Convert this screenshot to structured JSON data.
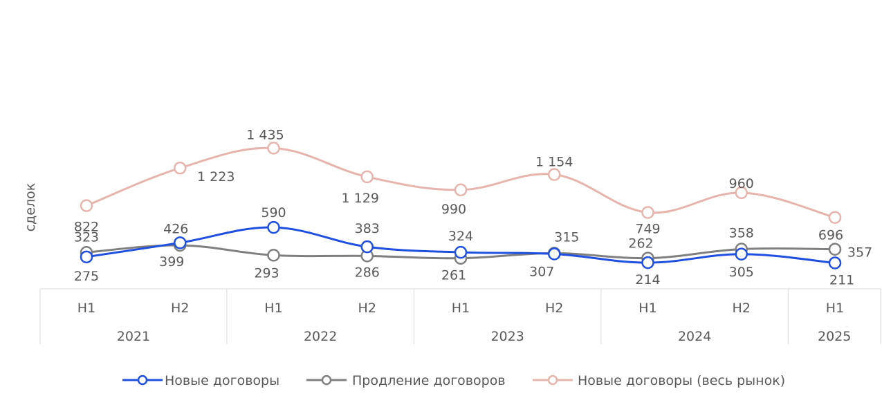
{
  "chart_data": {
    "type": "line",
    "ylabel": "сделок",
    "x_groups": [
      {
        "year": "2021",
        "halves": [
          "H1",
          "H2"
        ]
      },
      {
        "year": "2022",
        "halves": [
          "H1",
          "H2"
        ]
      },
      {
        "year": "2023",
        "halves": [
          "H1",
          "H2"
        ]
      },
      {
        "year": "2024",
        "halves": [
          "H1",
          "H2"
        ]
      },
      {
        "year": "2025",
        "halves": [
          "H1"
        ]
      }
    ],
    "series": [
      {
        "name": "Новые договоры",
        "color": "#1f4fe0",
        "values": [
          275,
          426,
          590,
          383,
          324,
          307,
          214,
          305,
          211
        ],
        "labels": [
          "275",
          "426",
          "590",
          "383",
          "324",
          "307",
          "214",
          "305",
          "211"
        ]
      },
      {
        "name": "Продление договоров",
        "color": "#7f7f7f",
        "values": [
          323,
          399,
          293,
          286,
          261,
          315,
          262,
          358,
          357
        ],
        "labels": [
          "323",
          "399",
          "293",
          "286",
          "261",
          "315",
          "262",
          "358",
          "357"
        ]
      },
      {
        "name": "Новые договоры (весь рынок)",
        "color": "#e6b4ad",
        "values": [
          822,
          1223,
          1435,
          1129,
          990,
          1154,
          749,
          960,
          696
        ],
        "labels": [
          "822",
          "1 223",
          "1 435",
          "1 129",
          "990",
          "1 154",
          "749",
          "960",
          "696"
        ]
      }
    ],
    "legend_position": "bottom",
    "grid": false
  }
}
